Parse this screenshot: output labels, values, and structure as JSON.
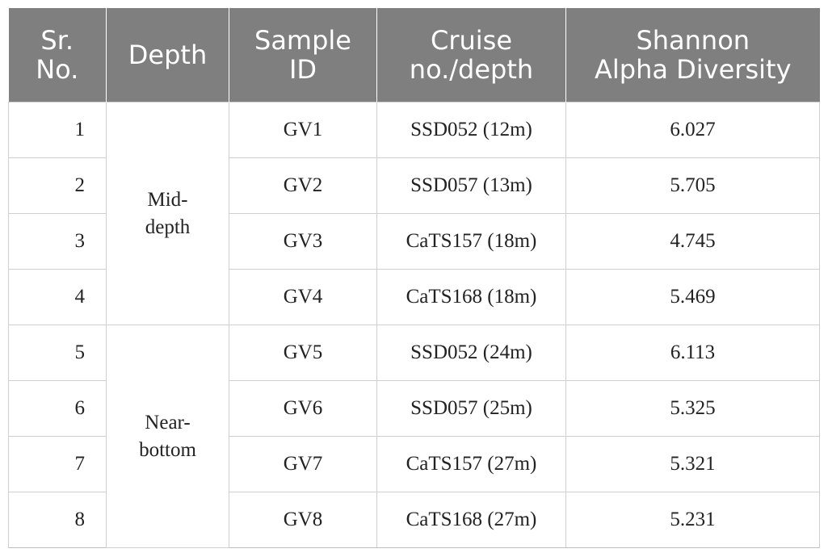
{
  "table": {
    "headers": [
      [
        "Sr.",
        "No."
      ],
      [
        "Depth"
      ],
      [
        "Sample",
        "ID"
      ],
      [
        "Cruise",
        "no./depth"
      ],
      [
        "Shannon",
        "Alpha Diversity"
      ]
    ],
    "groups": [
      {
        "depth": [
          "Mid-",
          "depth"
        ]
      },
      {
        "depth": [
          "Near-",
          "bottom"
        ]
      }
    ],
    "rows": [
      {
        "sr": "1",
        "sample": "GV1",
        "cruise": "SSD052 (12m)",
        "shannon": "6.027"
      },
      {
        "sr": "2",
        "sample": "GV2",
        "cruise": "SSD057 (13m)",
        "shannon": "5.705"
      },
      {
        "sr": "3",
        "sample": "GV3",
        "cruise": "CaTS157 (18m)",
        "shannon": "4.745"
      },
      {
        "sr": "4",
        "sample": "GV4",
        "cruise": "CaTS168 (18m)",
        "shannon": "5.469"
      },
      {
        "sr": "5",
        "sample": "GV5",
        "cruise": "SSD052 (24m)",
        "shannon": "6.113"
      },
      {
        "sr": "6",
        "sample": "GV6",
        "cruise": "SSD057 (25m)",
        "shannon": "5.325"
      },
      {
        "sr": "7",
        "sample": "GV7",
        "cruise": "CaTS157 (27m)",
        "shannon": "5.321"
      },
      {
        "sr": "8",
        "sample": "GV8",
        "cruise": "CaTS168 (27m)",
        "shannon": "5.231"
      }
    ]
  }
}
